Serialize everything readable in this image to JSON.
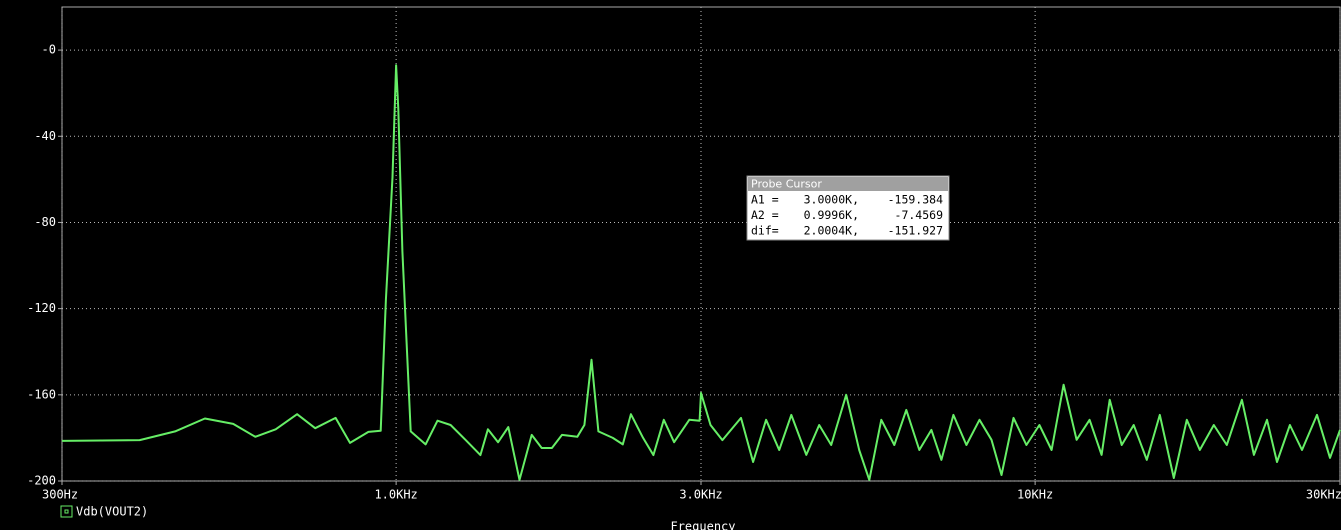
{
  "chart_data": {
    "type": "line",
    "x_label": "Frequency",
    "xscale": "log",
    "xlim": [
      300,
      30000
    ],
    "xticks": [
      {
        "value": 300,
        "label": "300Hz"
      },
      {
        "value": 1000,
        "label": "1.0KHz"
      },
      {
        "value": 3000,
        "label": "3.0KHz"
      },
      {
        "value": 10000,
        "label": "10KHz"
      },
      {
        "value": 30000,
        "label": "30KHz"
      }
    ],
    "ylim": [
      -200,
      20
    ],
    "yticks": [
      {
        "value": 0,
        "label": "-0"
      },
      -40,
      -80,
      -120,
      -160,
      -200
    ],
    "grid": true,
    "legend": "bottom-left",
    "x": [
      300,
      397,
      451,
      502,
      556,
      602,
      648,
      700,
      747,
      804,
      847,
      905,
      946,
      964,
      987,
      1000,
      1008,
      1023,
      1054,
      1112,
      1161,
      1217,
      1285,
      1355,
      1392,
      1444,
      1498,
      1560,
      1630,
      1690,
      1753,
      1818,
      1921,
      1971,
      2022,
      2073,
      2183,
      2263,
      2330,
      2435,
      2527,
      2624,
      2723,
      2876,
      2985,
      3000,
      3105,
      3240,
      3465,
      3619,
      3793,
      3977,
      4153,
      4384,
      4593,
      4796,
      5063,
      5306,
      5502,
      5744,
      6020,
      6287,
      6588,
      6881,
      7134,
      7450,
      7806,
      8183,
      8545,
      8858,
      9249,
      9692,
      10157,
      10610,
      11080,
      11612,
      12170,
      12707,
      13082,
      13662,
      14267,
      14953,
      15671,
      16483,
      17274,
      18100,
      19035,
      19952,
      21066,
      21998,
      23057,
      23904,
      25046,
      26158,
      27610,
      28935,
      30000
    ],
    "series": [
      {
        "name": "Vdb(VOUT2)",
        "color": "#66ee66",
        "values": [
          -181.4,
          -181,
          -177,
          -171,
          -173.5,
          -179.5,
          -176,
          -169,
          -175.5,
          -170.7,
          -182.3,
          -177.2,
          -176.7,
          -115.8,
          -59,
          -7,
          -27.4,
          -93.5,
          -177,
          -183,
          -172,
          -174,
          -181,
          -188,
          -176,
          -182,
          -175,
          -199.5,
          -178.6,
          -184.7,
          -184.7,
          -178.6,
          -179.5,
          -174,
          -143.7,
          -177,
          -180,
          -183,
          -169,
          -180,
          -188,
          -171.6,
          -182,
          -171.6,
          -172,
          -159.1,
          -174,
          -181,
          -170.7,
          -191.2,
          -171.6,
          -185.6,
          -169.3,
          -187.9,
          -174,
          -183.3,
          -160,
          -185.6,
          -199.5,
          -171.6,
          -183.3,
          -167,
          -185.6,
          -176.3,
          -190.2,
          -169.3,
          -183.3,
          -171.6,
          -180.9,
          -197.2,
          -170.7,
          -183.3,
          -174,
          -185.6,
          -155.3,
          -180.9,
          -171.6,
          -187.9,
          -162.3,
          -183.3,
          -174,
          -190.2,
          -169.3,
          -198.6,
          -171.6,
          -185.6,
          -174,
          -183.3,
          -162.3,
          -187.9,
          -171.6,
          -191.2,
          -174,
          -185.6,
          -169.3,
          -189.3,
          -176.3
        ]
      }
    ]
  },
  "probe_cursor": {
    "title": "Probe Cursor",
    "rows": [
      [
        "A1 =",
        "3.0000K,",
        "-159.384"
      ],
      [
        "A2 =",
        "0.9996K,",
        "-7.4569"
      ],
      [
        "dif=",
        "2.0004K,",
        "-151.927"
      ]
    ]
  }
}
